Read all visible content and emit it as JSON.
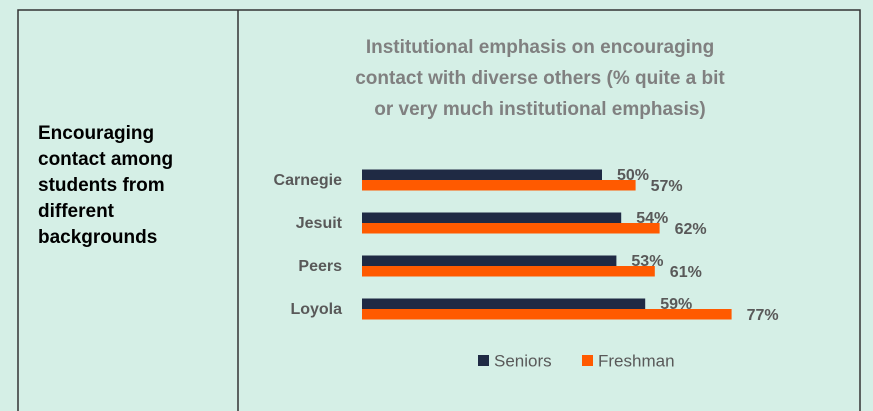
{
  "side_label": [
    "Encouraging",
    "contact among",
    "students from",
    "different",
    "backgrounds"
  ],
  "chart_data": {
    "type": "bar",
    "orientation": "horizontal",
    "title": [
      "Institutional emphasis on encouraging",
      "contact with diverse others (% quite a bit",
      "or very much institutional emphasis)"
    ],
    "categories": [
      "Carnegie",
      "Jesuit",
      "Peers",
      "Loyola"
    ],
    "series": [
      {
        "name": "Seniors",
        "color": "#1f2a44",
        "values": [
          50,
          54,
          53,
          59
        ],
        "value_labels": [
          "50%",
          "54%",
          "53%",
          "59%"
        ]
      },
      {
        "name": "Freshman",
        "color": "#ff5a00",
        "values": [
          57,
          62,
          61,
          77
        ],
        "value_labels": [
          "57%",
          "62%",
          "61%",
          "77%"
        ]
      }
    ],
    "xlim": [
      0,
      100
    ],
    "legend": "bottom"
  }
}
